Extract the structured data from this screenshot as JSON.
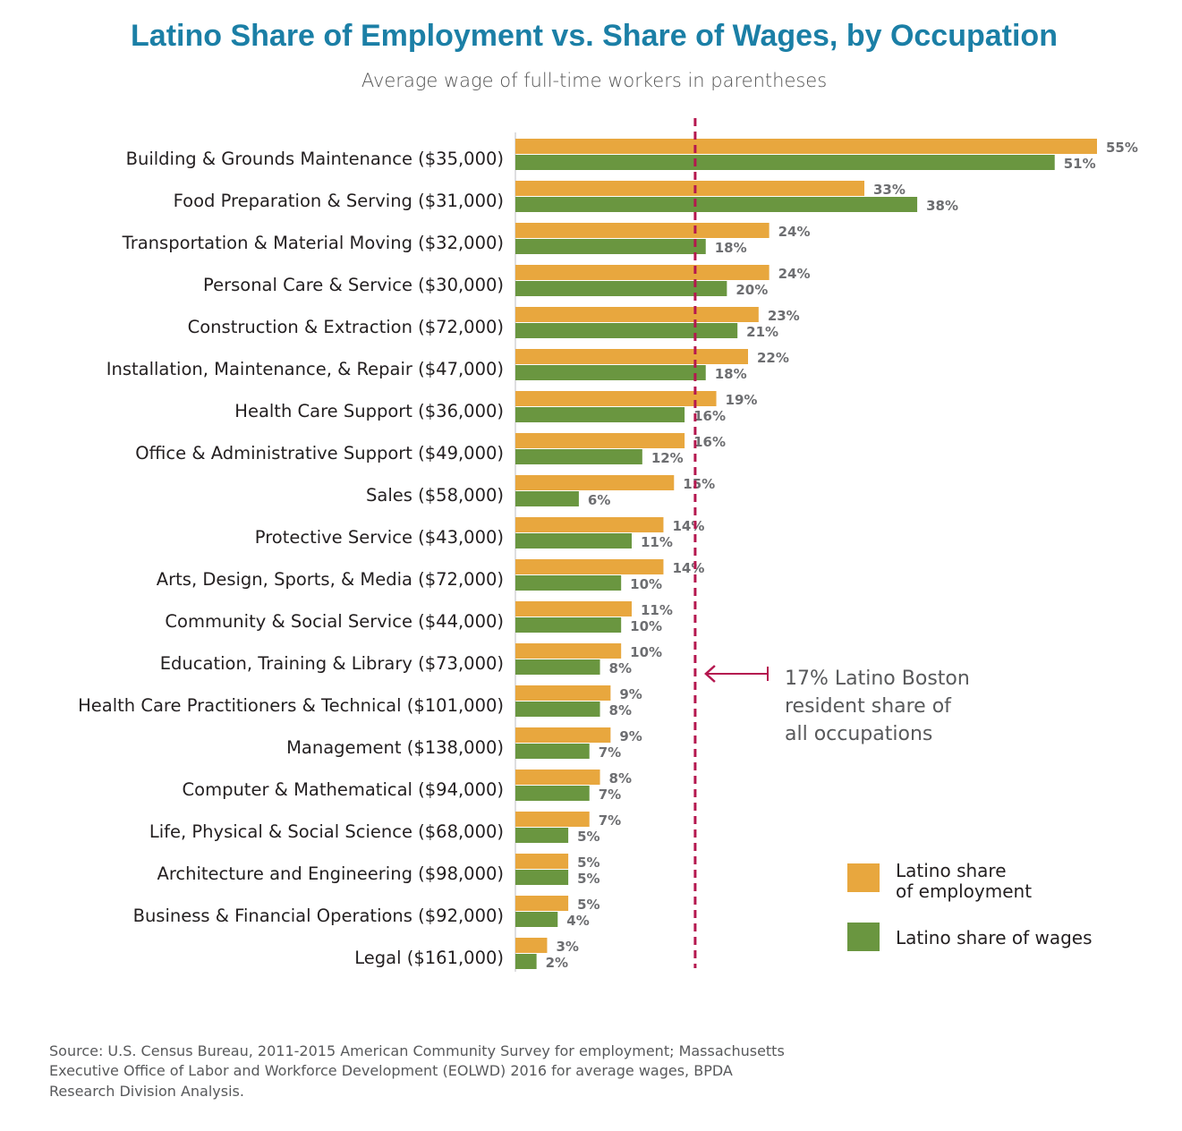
{
  "chart_data": {
    "type": "bar",
    "orientation": "horizontal",
    "title": "Latino Share of Employment vs. Share of Wages, by Occupation",
    "subtitle": "Average wage of full-time workers in parentheses",
    "categories": [
      "Building & Grounds Maintenance ($35,000)",
      "Food Preparation & Serving ($31,000)",
      "Transportation & Material Moving ($32,000)",
      "Personal Care & Service ($30,000)",
      "Construction & Extraction ($72,000)",
      "Installation, Maintenance, & Repair ($47,000)",
      "Health Care Support ($36,000)",
      "Office & Administrative Support ($49,000)",
      "Sales ($58,000)",
      "Protective Service ($43,000)",
      "Arts, Design, Sports, & Media ($72,000)",
      "Community & Social Service ($44,000)",
      "Education, Training & Library ($73,000)",
      "Health Care Practitioners & Technical ($101,000)",
      "Management ($138,000)",
      "Computer & Mathematical ($94,000)",
      "Life, Physical & Social Science ($68,000)",
      "Architecture and Engineering ($98,000)",
      "Business & Financial Operations ($92,000)",
      "Legal ($161,000)"
    ],
    "series": [
      {
        "name": "Latino share of employment",
        "color": "#E8A73E",
        "values": [
          55,
          33,
          24,
          24,
          23,
          22,
          19,
          16,
          15,
          14,
          14,
          11,
          10,
          9,
          9,
          8,
          7,
          5,
          5,
          3
        ]
      },
      {
        "name": "Latino share of wages",
        "color": "#6A9640",
        "values": [
          51,
          38,
          18,
          20,
          21,
          18,
          16,
          12,
          6,
          11,
          10,
          10,
          8,
          8,
          7,
          7,
          5,
          5,
          4,
          2
        ]
      }
    ],
    "value_suffix": "%",
    "xlim": [
      0,
      55
    ],
    "grid": false,
    "legend_position": "bottom-right",
    "reference_line": {
      "value": 17,
      "color": "#B5174F",
      "style": "dashed",
      "annotation": [
        "17% Latino Boston",
        "resident share of",
        "all occupations"
      ]
    },
    "source": [
      "Source: U.S. Census Bureau, 2011-2015 American Community Survey for employment; Massachusetts",
      "Executive Office of Labor and Workforce Development (EOLWD) 2016 for average wages, BPDA",
      "Research Division Analysis."
    ]
  },
  "legend": {
    "employment": [
      "Latino share",
      "of employment"
    ],
    "wages": "Latino share of wages"
  }
}
